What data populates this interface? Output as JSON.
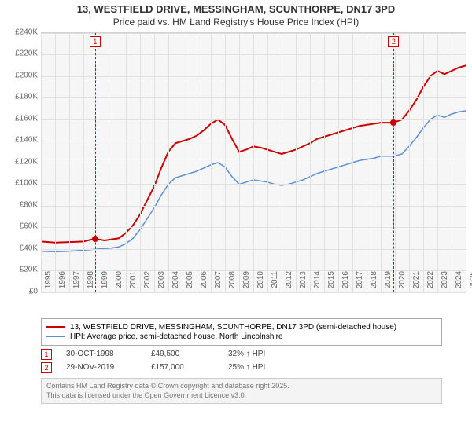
{
  "title_line1": "13, WESTFIELD DRIVE, MESSINGHAM, SCUNTHORPE, DN17 3PD",
  "title_line2": "Price paid vs. HM Land Registry's House Price Index (HPI)",
  "chart": {
    "type": "line",
    "background_color": "#f6f6f6",
    "grid_color": "#e0e0e0",
    "ylim": [
      0,
      240000
    ],
    "ytick_step": 20000,
    "yticks": [
      "£0",
      "£20K",
      "£40K",
      "£60K",
      "£80K",
      "£100K",
      "£120K",
      "£140K",
      "£160K",
      "£180K",
      "£200K",
      "£220K",
      "£240K"
    ],
    "xlim": [
      1995,
      2025
    ],
    "xticks": [
      "1995",
      "1996",
      "1997",
      "1998",
      "1999",
      "2000",
      "2001",
      "2002",
      "2003",
      "2004",
      "2005",
      "2006",
      "2007",
      "2008",
      "2009",
      "2010",
      "2011",
      "2012",
      "2013",
      "2014",
      "2015",
      "2016",
      "2017",
      "2018",
      "2019",
      "2020",
      "2021",
      "2022",
      "2023",
      "2024",
      "2025"
    ],
    "series": [
      {
        "name": "red",
        "label": "13, WESTFIELD DRIVE, MESSINGHAM, SCUNTHORPE, DN17 3PD (semi-detached house)",
        "color": "#cc0000",
        "line_width": 2,
        "points": [
          [
            1995,
            47000
          ],
          [
            1996,
            46000
          ],
          [
            1997,
            46500
          ],
          [
            1998,
            47000
          ],
          [
            1998.8,
            49500
          ],
          [
            1999.5,
            48000
          ],
          [
            2000,
            49000
          ],
          [
            2000.5,
            50000
          ],
          [
            2001,
            55000
          ],
          [
            2001.5,
            62000
          ],
          [
            2002,
            72000
          ],
          [
            2002.5,
            85000
          ],
          [
            2003,
            98000
          ],
          [
            2003.5,
            115000
          ],
          [
            2004,
            130000
          ],
          [
            2004.5,
            138000
          ],
          [
            2005,
            140000
          ],
          [
            2005.5,
            142000
          ],
          [
            2006,
            145000
          ],
          [
            2006.5,
            150000
          ],
          [
            2007,
            156000
          ],
          [
            2007.5,
            160000
          ],
          [
            2008,
            155000
          ],
          [
            2008.5,
            142000
          ],
          [
            2009,
            130000
          ],
          [
            2009.5,
            132000
          ],
          [
            2010,
            135000
          ],
          [
            2010.5,
            134000
          ],
          [
            2011,
            132000
          ],
          [
            2011.5,
            130000
          ],
          [
            2012,
            128000
          ],
          [
            2012.5,
            130000
          ],
          [
            2013,
            132000
          ],
          [
            2013.5,
            135000
          ],
          [
            2014,
            138000
          ],
          [
            2014.5,
            142000
          ],
          [
            2015,
            144000
          ],
          [
            2015.5,
            146000
          ],
          [
            2016,
            148000
          ],
          [
            2016.5,
            150000
          ],
          [
            2017,
            152000
          ],
          [
            2017.5,
            154000
          ],
          [
            2018,
            155000
          ],
          [
            2018.5,
            156000
          ],
          [
            2019,
            157000
          ],
          [
            2019.9,
            157000
          ],
          [
            2020.5,
            160000
          ],
          [
            2021,
            168000
          ],
          [
            2021.5,
            178000
          ],
          [
            2022,
            190000
          ],
          [
            2022.5,
            200000
          ],
          [
            2023,
            205000
          ],
          [
            2023.5,
            202000
          ],
          [
            2024,
            205000
          ],
          [
            2024.5,
            208000
          ],
          [
            2025,
            210000
          ]
        ]
      },
      {
        "name": "blue",
        "label": "HPI: Average price, semi-detached house, North Lincolnshire",
        "color": "#5b8fd6",
        "line_width": 1.5,
        "points": [
          [
            1995,
            38000
          ],
          [
            1996,
            37500
          ],
          [
            1997,
            38000
          ],
          [
            1998,
            39000
          ],
          [
            1999,
            40000
          ],
          [
            2000,
            41000
          ],
          [
            2000.5,
            42000
          ],
          [
            2001,
            45000
          ],
          [
            2001.5,
            50000
          ],
          [
            2002,
            58000
          ],
          [
            2002.5,
            68000
          ],
          [
            2003,
            78000
          ],
          [
            2003.5,
            90000
          ],
          [
            2004,
            100000
          ],
          [
            2004.5,
            106000
          ],
          [
            2005,
            108000
          ],
          [
            2005.5,
            110000
          ],
          [
            2006,
            112000
          ],
          [
            2006.5,
            115000
          ],
          [
            2007,
            118000
          ],
          [
            2007.5,
            120000
          ],
          [
            2008,
            116000
          ],
          [
            2008.5,
            107000
          ],
          [
            2009,
            100000
          ],
          [
            2009.5,
            102000
          ],
          [
            2010,
            104000
          ],
          [
            2010.5,
            103000
          ],
          [
            2011,
            102000
          ],
          [
            2011.5,
            100000
          ],
          [
            2012,
            99000
          ],
          [
            2012.5,
            100000
          ],
          [
            2013,
            102000
          ],
          [
            2013.5,
            104000
          ],
          [
            2014,
            107000
          ],
          [
            2014.5,
            110000
          ],
          [
            2015,
            112000
          ],
          [
            2015.5,
            114000
          ],
          [
            2016,
            116000
          ],
          [
            2016.5,
            118000
          ],
          [
            2017,
            120000
          ],
          [
            2017.5,
            122000
          ],
          [
            2018,
            123000
          ],
          [
            2018.5,
            124000
          ],
          [
            2019,
            126000
          ],
          [
            2019.9,
            126000
          ],
          [
            2020.5,
            128000
          ],
          [
            2021,
            135000
          ],
          [
            2021.5,
            143000
          ],
          [
            2022,
            152000
          ],
          [
            2022.5,
            160000
          ],
          [
            2023,
            164000
          ],
          [
            2023.5,
            162000
          ],
          [
            2024,
            165000
          ],
          [
            2024.5,
            167000
          ],
          [
            2025,
            168000
          ]
        ]
      }
    ],
    "markers": [
      {
        "n": "1",
        "x": 1998.83,
        "y": 49500,
        "color": "#cc0000"
      },
      {
        "n": "2",
        "x": 2019.91,
        "y": 157000,
        "color": "#cc0000"
      }
    ]
  },
  "legend": {
    "items": [
      {
        "color": "#cc0000",
        "label": "13, WESTFIELD DRIVE, MESSINGHAM, SCUNTHORPE, DN17 3PD (semi-detached house)"
      },
      {
        "color": "#5b8fd6",
        "label": "HPI: Average price, semi-detached house, North Lincolnshire"
      }
    ]
  },
  "events": [
    {
      "n": "1",
      "color": "#cc0000",
      "date": "30-OCT-1998",
      "price": "£49,500",
      "delta": "32% ↑ HPI"
    },
    {
      "n": "2",
      "color": "#cc0000",
      "date": "29-NOV-2019",
      "price": "£157,000",
      "delta": "25% ↑ HPI"
    }
  ],
  "footer_line1": "Contains HM Land Registry data © Crown copyright and database right 2025.",
  "footer_line2": "This data is licensed under the Open Government Licence v3.0."
}
